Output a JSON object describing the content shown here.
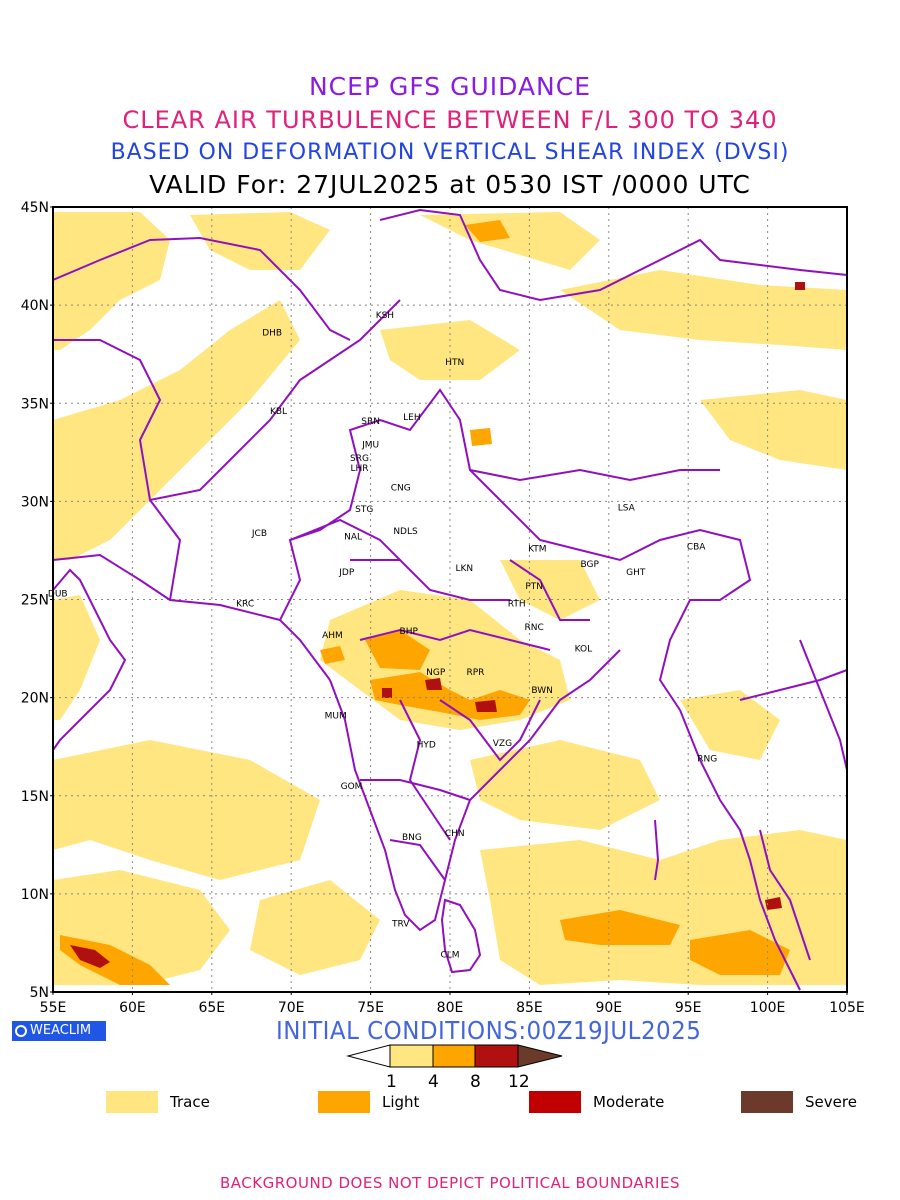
{
  "titles": {
    "line1": "NCEP GFS GUIDANCE",
    "line2": "CLEAR AIR TURBULENCE BETWEEN F/L 300 TO 340",
    "line3": "BASED ON DEFORMATION VERTICAL SHEAR INDEX (DVSI)",
    "line4": "VALID For: 27JUL2025 at 0530 IST /0000 UTC"
  },
  "axes": {
    "lat_labels": [
      "45N",
      "40N",
      "35N",
      "30N",
      "25N",
      "20N",
      "15N",
      "10N",
      "5N"
    ],
    "lon_labels": [
      "55E",
      "60E",
      "65E",
      "70E",
      "75E",
      "80E",
      "85E",
      "90E",
      "95E",
      "100E",
      "105E"
    ]
  },
  "stations": [
    {
      "code": "KSH",
      "lon": 75.9,
      "lat": 39.5
    },
    {
      "code": "DHB",
      "lon": 68.8,
      "lat": 38.6
    },
    {
      "code": "HTN",
      "lon": 80.3,
      "lat": 37.1
    },
    {
      "code": "KBL",
      "lon": 69.2,
      "lat": 34.6
    },
    {
      "code": "SRN",
      "lon": 75.0,
      "lat": 34.1
    },
    {
      "code": "LEH",
      "lon": 77.6,
      "lat": 34.3
    },
    {
      "code": "JMU",
      "lon": 75.0,
      "lat": 32.9
    },
    {
      "code": "SRG",
      "lon": 74.3,
      "lat": 32.2
    },
    {
      "code": "LHR",
      "lon": 74.3,
      "lat": 31.7
    },
    {
      "code": "CNG",
      "lon": 76.9,
      "lat": 30.7
    },
    {
      "code": "STG",
      "lon": 74.6,
      "lat": 29.6
    },
    {
      "code": "LSA",
      "lon": 91.1,
      "lat": 29.7
    },
    {
      "code": "JCB",
      "lon": 68.0,
      "lat": 28.4
    },
    {
      "code": "NAL",
      "lon": 73.9,
      "lat": 28.2
    },
    {
      "code": "NDLS",
      "lon": 77.2,
      "lat": 28.5
    },
    {
      "code": "KTM",
      "lon": 85.5,
      "lat": 27.6
    },
    {
      "code": "CBA",
      "lon": 95.5,
      "lat": 27.7
    },
    {
      "code": "BGP",
      "lon": 88.8,
      "lat": 26.8
    },
    {
      "code": "GHT",
      "lon": 91.7,
      "lat": 26.4
    },
    {
      "code": "LKN",
      "lon": 80.9,
      "lat": 26.6
    },
    {
      "code": "JDP",
      "lon": 73.5,
      "lat": 26.4
    },
    {
      "code": "PTN",
      "lon": 85.3,
      "lat": 25.7
    },
    {
      "code": "DUB",
      "lon": 55.3,
      "lat": 25.3
    },
    {
      "code": "KRC",
      "lon": 67.1,
      "lat": 24.8
    },
    {
      "code": "RTH",
      "lon": 84.2,
      "lat": 24.8
    },
    {
      "code": "BHP",
      "lon": 77.4,
      "lat": 23.4
    },
    {
      "code": "AHM",
      "lon": 72.6,
      "lat": 23.2
    },
    {
      "code": "RNC",
      "lon": 85.3,
      "lat": 23.6
    },
    {
      "code": "KOL",
      "lon": 88.4,
      "lat": 22.5
    },
    {
      "code": "NGP",
      "lon": 79.1,
      "lat": 21.3
    },
    {
      "code": "RPR",
      "lon": 81.6,
      "lat": 21.3
    },
    {
      "code": "BWN",
      "lon": 85.8,
      "lat": 20.4
    },
    {
      "code": "MUM",
      "lon": 72.8,
      "lat": 19.1
    },
    {
      "code": "HYD",
      "lon": 78.5,
      "lat": 17.6
    },
    {
      "code": "VZG",
      "lon": 83.3,
      "lat": 17.7
    },
    {
      "code": "RNG",
      "lon": 96.2,
      "lat": 16.9
    },
    {
      "code": "GOM",
      "lon": 73.8,
      "lat": 15.5
    },
    {
      "code": "CHN",
      "lon": 80.3,
      "lat": 13.1
    },
    {
      "code": "BNG",
      "lon": 77.6,
      "lat": 12.9
    },
    {
      "code": "TRV",
      "lon": 76.9,
      "lat": 8.5
    },
    {
      "code": "CLM",
      "lon": 80.0,
      "lat": 6.9
    }
  ],
  "colorbar": {
    "levels": [
      "1",
      "4",
      "8",
      "12"
    ],
    "colors": [
      "#ffe680",
      "#ffa500",
      "#b01010",
      "#6b3a2a"
    ]
  },
  "logo": {
    "label": "WEACLIM",
    "icon": "globe-icon"
  },
  "initial_conditions": "INITIAL CONDITIONS:00Z19JUL2025",
  "legend": [
    {
      "label": "Trace",
      "color": "#ffe680"
    },
    {
      "label": "Light",
      "color": "#ffa500"
    },
    {
      "label": "Moderate",
      "color": "#c00000"
    },
    {
      "label": "Severe",
      "color": "#6b3a2a"
    }
  ],
  "footer": "BACKGROUND DOES NOT DEPICT POLITICAL BOUNDARIES",
  "colors": {
    "boundary": "#9010c0",
    "trace": "#ffe680",
    "light": "#ffa500",
    "moderate": "#b01010",
    "severe": "#6b3a2a"
  }
}
